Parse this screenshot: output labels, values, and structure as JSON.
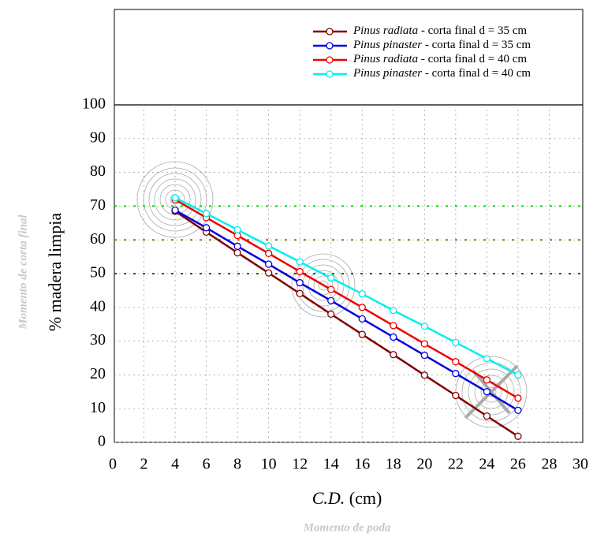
{
  "chart_data": {
    "type": "line",
    "x_label": "C.D. (cm)",
    "y_label": "% madera limpia",
    "annotations": [
      "Momento de corta final",
      "Momento de poda"
    ],
    "x": [
      4,
      6,
      8,
      10,
      12,
      14,
      16,
      18,
      20,
      22,
      24,
      26
    ],
    "series": [
      {
        "name": "Pinus radiata - corta final d = 35 cm",
        "color": "#800000",
        "values": [
          68.5,
          62.3,
          56.2,
          50.2,
          44.1,
          38.0,
          32.0,
          26.0,
          19.9,
          13.9,
          7.8,
          1.8
        ]
      },
      {
        "name": "Pinus pinaster - corta final d = 35 cm",
        "color": "#0000e0",
        "values": [
          68.8,
          63.6,
          58.1,
          52.8,
          47.3,
          42.0,
          36.6,
          31.2,
          25.8,
          20.4,
          15.0,
          9.5
        ]
      },
      {
        "name": "Pinus radiata - corta final d = 40 cm",
        "color": "#ee0000",
        "values": [
          71.9,
          66.6,
          61.3,
          56.0,
          50.6,
          45.3,
          40.0,
          34.6,
          29.2,
          23.9,
          18.5,
          13.1
        ]
      },
      {
        "name": "Pinus pinaster - corta final d = 40 cm",
        "color": "#00eeee",
        "values": [
          72.5,
          67.8,
          63.0,
          58.2,
          53.5,
          48.7,
          44.0,
          39.1,
          34.4,
          29.6,
          24.8,
          20.0
        ]
      }
    ],
    "reference_lines": [
      {
        "value": 70,
        "color": "#00dd00"
      },
      {
        "value": 60,
        "color": "#808000"
      },
      {
        "value": 50,
        "color": "#006400"
      }
    ],
    "xlim": [
      0,
      30
    ],
    "xticks": [
      0,
      2,
      4,
      6,
      8,
      10,
      12,
      14,
      16,
      18,
      20,
      22,
      24,
      26,
      28,
      30
    ],
    "ylim": [
      0,
      100
    ],
    "yticks": [
      0,
      10,
      20,
      30,
      40,
      50,
      60,
      70,
      80,
      90,
      100
    ],
    "grid": true
  }
}
